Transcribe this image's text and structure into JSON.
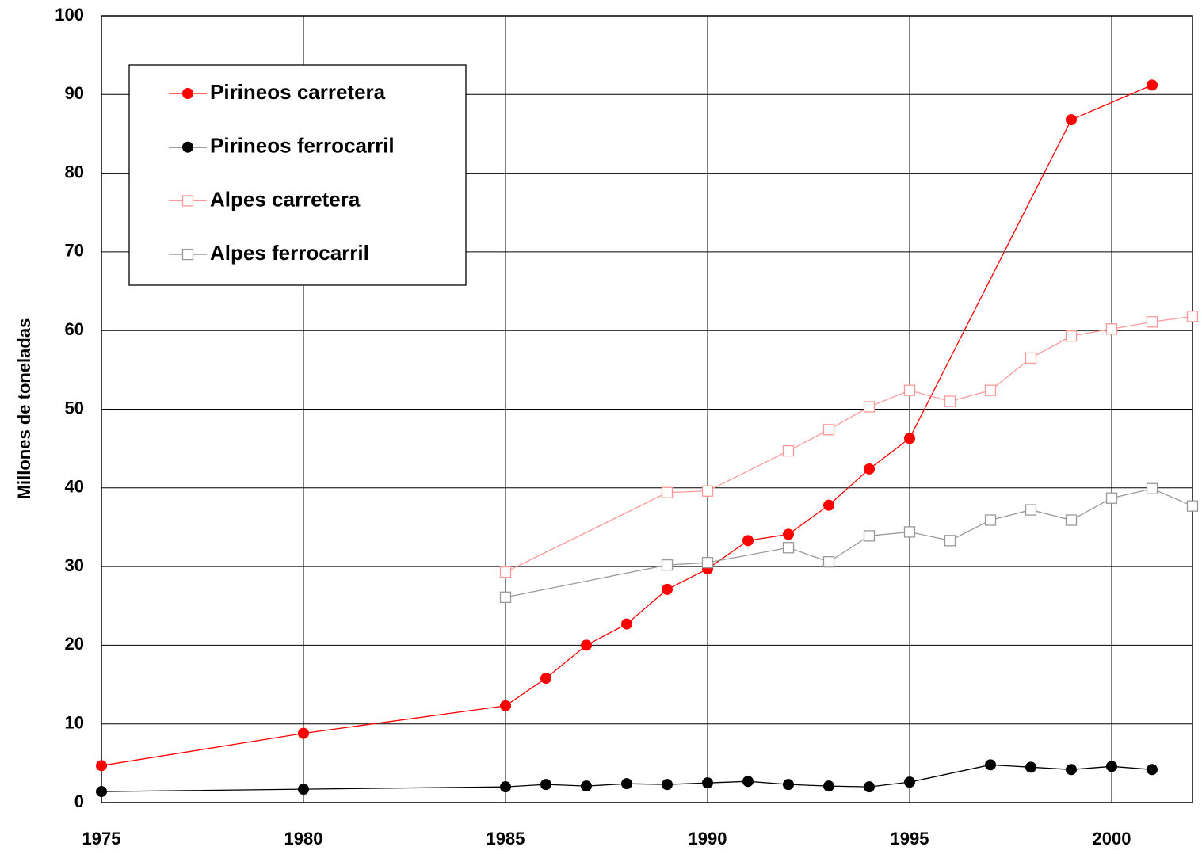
{
  "chart_data": {
    "type": "line",
    "y_label": "Millones de toneladas",
    "xlim": [
      1975,
      2002
    ],
    "xticks": [
      1975,
      1980,
      1985,
      1990,
      1995,
      2000
    ],
    "ylim": [
      0,
      100
    ],
    "yticks": [
      0,
      10,
      20,
      30,
      40,
      50,
      60,
      70,
      80,
      90,
      100
    ],
    "grid": true,
    "legend": "upper left",
    "series": [
      {
        "name": "Pirineos carretera",
        "color": "#ff0000",
        "marker": "filled-circle",
        "x": [
          1975,
          1980,
          1985,
          1986,
          1987,
          1988,
          1989,
          1990,
          1991,
          1992,
          1993,
          1994,
          1995,
          1999,
          2001
        ],
        "values": [
          4.7,
          8.8,
          12.3,
          15.8,
          20,
          22.7,
          27.1,
          29.7,
          33.3,
          34.1,
          37.8,
          42.4,
          46.3,
          86.8,
          91.2
        ]
      },
      {
        "name": "Pirineos ferrocarril",
        "color": "#000000",
        "marker": "filled-circle",
        "x": [
          1975,
          1980,
          1985,
          1986,
          1987,
          1988,
          1989,
          1990,
          1991,
          1992,
          1993,
          1994,
          1995,
          1997,
          1998,
          1999,
          2000,
          2001
        ],
        "values": [
          1.4,
          1.7,
          2.0,
          2.3,
          2.1,
          2.4,
          2.3,
          2.5,
          2.7,
          2.3,
          2.1,
          2.0,
          2.6,
          4.8,
          4.5,
          4.2,
          4.6,
          4.2
        ]
      },
      {
        "name": "Alpes carretera",
        "color": "#ff9999",
        "marker": "open-square",
        "x": [
          1985,
          1989,
          1990,
          1992,
          1993,
          1994,
          1995,
          1996,
          1997,
          1998,
          1999,
          2000,
          2001,
          2002
        ],
        "values": [
          29.3,
          39.4,
          39.6,
          44.7,
          47.4,
          50.3,
          52.4,
          51.0,
          52.4,
          56.5,
          59.3,
          60.2,
          61.1,
          61.8
        ]
      },
      {
        "name": "Alpes ferrocarril",
        "color": "#999999",
        "marker": "open-square",
        "x": [
          1985,
          1989,
          1990,
          1992,
          1993,
          1994,
          1995,
          1996,
          1997,
          1998,
          1999,
          2000,
          2001,
          2002
        ],
        "values": [
          26.1,
          30.2,
          30.5,
          32.4,
          30.6,
          33.9,
          34.4,
          33.3,
          35.9,
          37.2,
          35.9,
          38.7,
          39.9,
          37.7
        ]
      }
    ]
  }
}
